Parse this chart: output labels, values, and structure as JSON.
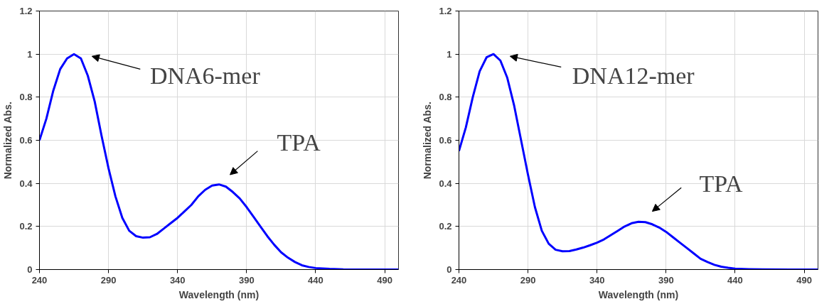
{
  "chart_data": [
    {
      "type": "line",
      "xlabel": "Wavelength (nm)",
      "ylabel": "Normalized Abs.",
      "xlim": [
        240,
        500
      ],
      "ylim": [
        0,
        1.2
      ],
      "xticks": [
        240,
        290,
        340,
        390,
        440,
        490
      ],
      "yticks": [
        0,
        0.2,
        0.4,
        0.6,
        0.8,
        1,
        1.2
      ],
      "grid": true,
      "marker": "none",
      "line_style": "solid",
      "x": [
        240,
        245,
        250,
        255,
        260,
        265,
        270,
        275,
        280,
        285,
        290,
        295,
        300,
        305,
        310,
        315,
        320,
        325,
        330,
        335,
        340,
        345,
        350,
        355,
        360,
        365,
        370,
        375,
        380,
        385,
        390,
        395,
        400,
        405,
        410,
        415,
        420,
        425,
        430,
        435,
        440,
        450,
        460,
        480,
        500
      ],
      "series": [
        {
          "color": "#0000ff",
          "values": [
            0.6,
            0.7,
            0.83,
            0.93,
            0.98,
            1.0,
            0.98,
            0.9,
            0.78,
            0.62,
            0.47,
            0.34,
            0.24,
            0.18,
            0.155,
            0.148,
            0.15,
            0.165,
            0.19,
            0.215,
            0.24,
            0.27,
            0.3,
            0.34,
            0.37,
            0.39,
            0.395,
            0.385,
            0.36,
            0.33,
            0.29,
            0.245,
            0.2,
            0.155,
            0.115,
            0.08,
            0.055,
            0.035,
            0.02,
            0.012,
            0.007,
            0.003,
            0.001,
            0,
            0
          ]
        }
      ],
      "annotations": [
        "DNA6-mer",
        "TPA"
      ]
    },
    {
      "type": "line",
      "xlabel": "Wavelength (nm)",
      "ylabel": "Normalized Abs.",
      "xlim": [
        240,
        500
      ],
      "ylim": [
        0,
        1.2
      ],
      "xticks": [
        240,
        290,
        340,
        390,
        440,
        490
      ],
      "yticks": [
        0,
        0.2,
        0.4,
        0.6,
        0.8,
        1,
        1.2
      ],
      "grid": true,
      "marker": "none",
      "line_style": "solid",
      "x": [
        240,
        245,
        250,
        255,
        260,
        265,
        270,
        275,
        280,
        285,
        290,
        295,
        300,
        305,
        310,
        315,
        320,
        325,
        330,
        335,
        340,
        345,
        350,
        355,
        360,
        365,
        370,
        375,
        380,
        385,
        390,
        395,
        400,
        405,
        410,
        415,
        420,
        425,
        430,
        435,
        440,
        450,
        460,
        480,
        500
      ],
      "series": [
        {
          "color": "#0000ff",
          "values": [
            0.55,
            0.66,
            0.8,
            0.92,
            0.985,
            1.0,
            0.97,
            0.89,
            0.76,
            0.6,
            0.44,
            0.29,
            0.18,
            0.12,
            0.092,
            0.085,
            0.086,
            0.093,
            0.102,
            0.113,
            0.125,
            0.14,
            0.16,
            0.18,
            0.2,
            0.215,
            0.222,
            0.22,
            0.21,
            0.195,
            0.175,
            0.15,
            0.125,
            0.1,
            0.075,
            0.05,
            0.035,
            0.022,
            0.013,
            0.008,
            0.004,
            0.002,
            0.001,
            0,
            0
          ]
        }
      ],
      "annotations": [
        "DNA12-mer",
        "TPA"
      ]
    }
  ]
}
